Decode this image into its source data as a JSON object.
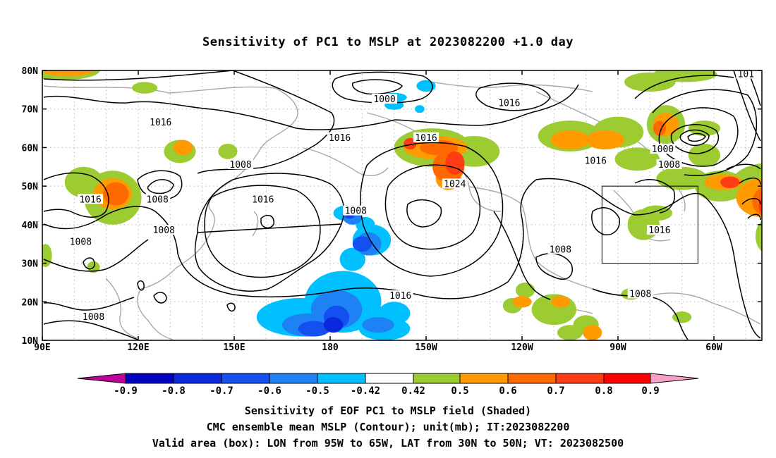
{
  "title": "Sensitivity of PC1 to MSLP at 2023082200 +1.0 day",
  "map": {
    "lon_labels": [
      "90E",
      "120E",
      "150E",
      "180",
      "150W",
      "120W",
      "90W",
      "60W"
    ],
    "lat_labels": [
      "80N",
      "70N",
      "60N",
      "50N",
      "40N",
      "30N",
      "20N",
      "10N"
    ],
    "contour_labels": [
      {
        "text": "1000",
        "lon": -163,
        "lat": 72.5
      },
      {
        "text": "1016",
        "lon": -124,
        "lat": 71.5
      },
      {
        "text": "1016",
        "lon": 127,
        "lat": 66.5
      },
      {
        "text": "1016",
        "lon": -177,
        "lat": 62.5
      },
      {
        "text": "1016",
        "lon": -150,
        "lat": 62.5
      },
      {
        "text": "1016",
        "lon": -97,
        "lat": 56.5
      },
      {
        "text": "1000",
        "lon": -76,
        "lat": 59.5
      },
      {
        "text": "1008",
        "lon": -74,
        "lat": 55.5
      },
      {
        "text": "1008",
        "lon": 152,
        "lat": 55.5
      },
      {
        "text": "1024",
        "lon": -141,
        "lat": 50.5
      },
      {
        "text": "1016",
        "lon": 105,
        "lat": 46.5
      },
      {
        "text": "1008",
        "lon": 126,
        "lat": 46.5
      },
      {
        "text": "1016",
        "lon": 159,
        "lat": 46.5
      },
      {
        "text": "1008",
        "lon": -172,
        "lat": 43.5
      },
      {
        "text": "1008",
        "lon": 102,
        "lat": 35.5
      },
      {
        "text": "1008",
        "lon": 128,
        "lat": 38.5
      },
      {
        "text": "1016",
        "lon": -77,
        "lat": 38.5
      },
      {
        "text": "1008",
        "lon": -108,
        "lat": 33.5
      },
      {
        "text": "1016",
        "lon": -158,
        "lat": 21.5
      },
      {
        "text": "1008",
        "lon": -83,
        "lat": 22.0
      },
      {
        "text": "1008",
        "lon": 106,
        "lat": 16.0
      },
      {
        "text": "101",
        "lon": -50,
        "lat": 79.0
      }
    ],
    "valid_box": {
      "lon_min": -95,
      "lon_max": -65,
      "lat_min": 30,
      "lat_max": 50
    }
  },
  "colorbar": {
    "labels": [
      "-0.9",
      "-0.8",
      "-0.7",
      "-0.6",
      "-0.5",
      "-0.42",
      "0.42",
      "0.5",
      "0.6",
      "0.7",
      "0.8",
      "0.9"
    ],
    "colors": [
      "#c0009a",
      "#0000c0",
      "#0a28dc",
      "#1450f0",
      "#1e82f5",
      "#00c0ff",
      "#ffffff",
      "#9ccc32",
      "#ff9a00",
      "#ff6a00",
      "#ff3c14",
      "#ff0000",
      "#f8a0c8"
    ]
  },
  "captions": {
    "line1": "Sensitivity of EOF PC1 to MSLP field (Shaded)",
    "line2": "CMC ensemble mean MSLP (Contour); unit(mb); IT:2023082200",
    "line3": "Valid area (box): LON from 95W to 65W, LAT from 30N to 50N; VT: 2023082500"
  }
}
